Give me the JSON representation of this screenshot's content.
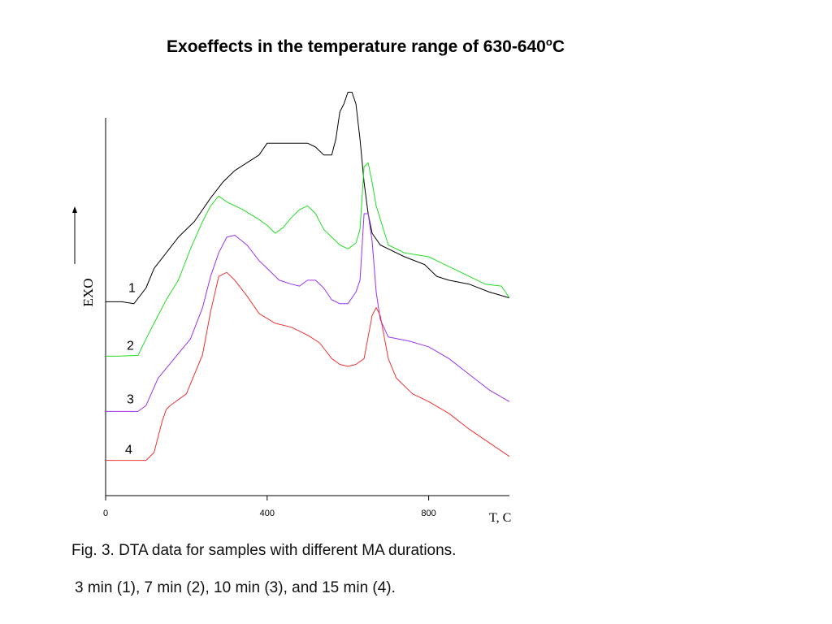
{
  "title": {
    "main": "Exoeffects in the temperature range of 630-640",
    "sup": "o",
    "unit": "C"
  },
  "caption": {
    "line1": "Fig. 3. DTA data for samples with different MA durations.",
    "line2": "3 min (1), 7 min (2), 10 min (3), and 15 min (4)."
  },
  "chart_data": {
    "type": "line",
    "title": "Exoeffects in the temperature range of 630-640oC",
    "xlabel": "T, C",
    "ylabel": "EXO",
    "xlim": [
      0,
      1000
    ],
    "ylim": [
      0,
      100
    ],
    "xticks": [
      0,
      400,
      800
    ],
    "xtick_labels": [
      "0",
      "400",
      "800"
    ],
    "grid": false,
    "legend": "none",
    "series": [
      {
        "name": "1",
        "color": "#000000",
        "x": [
          0,
          40,
          70,
          100,
          120,
          150,
          180,
          220,
          260,
          290,
          320,
          350,
          380,
          400,
          420,
          440,
          460,
          480,
          500,
          520,
          540,
          560,
          570,
          580,
          590,
          600,
          610,
          620,
          630,
          640,
          650,
          660,
          680,
          700,
          740,
          790,
          820,
          850,
          900,
          950,
          1000
        ],
        "y": [
          49.5,
          49.5,
          49,
          53,
          58,
          62,
          66,
          70,
          76,
          80,
          83,
          85,
          87,
          90,
          90,
          90,
          90,
          90,
          90,
          89,
          87,
          87,
          91,
          98,
          100,
          103,
          103,
          100,
          91,
          80,
          72,
          67,
          64,
          63,
          61,
          59,
          56,
          55,
          54,
          52,
          50.5
        ]
      },
      {
        "name": "2",
        "color": "#22dd22",
        "x": [
          0,
          30,
          80,
          100,
          120,
          150,
          180,
          210,
          240,
          260,
          280,
          300,
          340,
          380,
          400,
          420,
          440,
          460,
          480,
          500,
          520,
          540,
          560,
          580,
          600,
          620,
          630,
          640,
          650,
          660,
          670,
          700,
          740,
          800,
          820,
          860,
          900,
          940,
          980,
          1000
        ],
        "y": [
          35.6,
          35.6,
          35.8,
          40,
          44,
          50,
          55,
          63,
          70,
          74,
          76.5,
          75,
          73,
          70.5,
          69,
          67,
          68.5,
          71,
          73,
          74,
          72,
          68,
          66,
          64,
          63,
          64.5,
          68,
          84,
          85,
          80,
          74,
          64,
          62,
          61,
          60,
          58,
          56,
          54,
          53.5,
          50.5
        ]
      },
      {
        "name": "3",
        "color": "#9933ee",
        "x": [
          0,
          30,
          80,
          100,
          130,
          170,
          210,
          240,
          260,
          280,
          300,
          320,
          350,
          380,
          400,
          430,
          460,
          480,
          500,
          520,
          540,
          560,
          580,
          600,
          620,
          630,
          640,
          650,
          660,
          670,
          680,
          700,
          750,
          800,
          850,
          900,
          950,
          1000
        ],
        "y": [
          21.5,
          21.5,
          21.5,
          23,
          30,
          35,
          40,
          48,
          56,
          62,
          66,
          66.5,
          64,
          60,
          58,
          55,
          54,
          53.5,
          55,
          55,
          53,
          50,
          49,
          49,
          52,
          55,
          72,
          72,
          65,
          52,
          45,
          40.5,
          39.5,
          38,
          35,
          31,
          27,
          24
        ]
      },
      {
        "name": "4",
        "color": "#ee3333",
        "x": [
          0,
          40,
          100,
          120,
          140,
          150,
          160,
          200,
          240,
          260,
          280,
          300,
          320,
          350,
          380,
          420,
          460,
          500,
          530,
          560,
          580,
          600,
          620,
          640,
          660,
          670,
          680,
          700,
          720,
          760,
          800,
          850,
          900,
          950,
          1000
        ],
        "y": [
          9,
          9,
          9,
          11,
          19,
          22,
          23,
          26,
          36,
          47,
          56,
          57,
          55,
          51,
          46.5,
          44,
          43,
          41,
          39,
          35,
          33.5,
          33,
          33.5,
          35,
          46,
          48,
          46,
          35,
          30,
          26,
          24,
          21,
          17,
          13.5,
          10
        ]
      }
    ],
    "annotations": [
      {
        "text": "1",
        "series": "1"
      },
      {
        "text": "2",
        "series": "2"
      },
      {
        "text": "3",
        "series": "3"
      },
      {
        "text": "4",
        "series": "4"
      }
    ]
  }
}
